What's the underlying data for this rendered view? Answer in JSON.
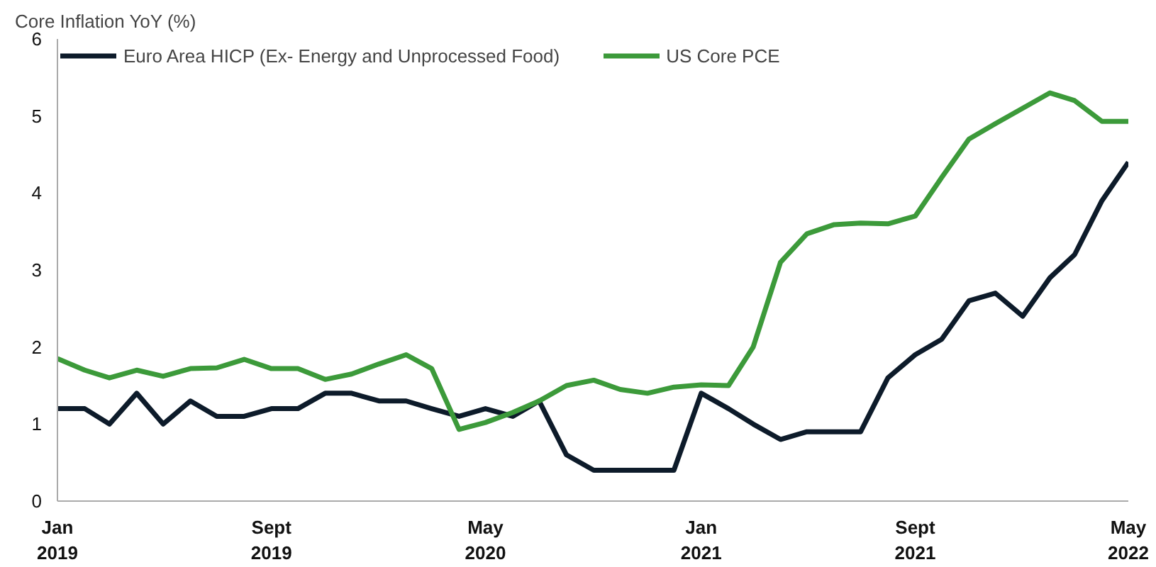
{
  "chart_data": {
    "type": "line",
    "ylabel": "Core Inflation YoY (%)",
    "x": [
      "2019-01",
      "2019-02",
      "2019-03",
      "2019-04",
      "2019-05",
      "2019-06",
      "2019-07",
      "2019-08",
      "2019-09",
      "2019-10",
      "2019-11",
      "2019-12",
      "2020-01",
      "2020-02",
      "2020-03",
      "2020-04",
      "2020-05",
      "2020-06",
      "2020-07",
      "2020-08",
      "2020-09",
      "2020-10",
      "2020-11",
      "2020-12",
      "2021-01",
      "2021-02",
      "2021-03",
      "2021-04",
      "2021-05",
      "2021-06",
      "2021-07",
      "2021-08",
      "2021-09",
      "2021-10",
      "2021-11",
      "2021-12",
      "2022-01",
      "2022-02",
      "2022-03",
      "2022-04",
      "2022-05"
    ],
    "series": [
      {
        "name": "Euro Area HICP (Ex- Energy and Unprocessed Food)",
        "color": "#0d1b2a",
        "values": [
          1.2,
          1.2,
          1.0,
          1.4,
          1.0,
          1.3,
          1.1,
          1.1,
          1.2,
          1.2,
          1.4,
          1.4,
          1.3,
          1.3,
          1.2,
          1.1,
          1.2,
          1.1,
          1.3,
          0.6,
          0.4,
          0.4,
          0.4,
          0.4,
          1.4,
          1.2,
          1.0,
          0.8,
          0.9,
          0.9,
          0.9,
          1.6,
          1.9,
          2.1,
          2.6,
          2.7,
          2.4,
          2.9,
          3.2,
          3.9,
          4.4
        ]
      },
      {
        "name": "US Core PCE",
        "color": "#3c9a3a",
        "values": [
          1.85,
          1.7,
          1.6,
          1.7,
          1.62,
          1.72,
          1.73,
          1.84,
          1.72,
          1.72,
          1.58,
          1.65,
          1.78,
          1.9,
          1.72,
          0.93,
          1.02,
          1.15,
          1.3,
          1.5,
          1.57,
          1.45,
          1.4,
          1.48,
          1.51,
          1.5,
          2.0,
          3.1,
          3.47,
          3.59,
          3.61,
          3.6,
          3.7,
          4.2,
          4.7,
          4.9,
          5.1,
          5.3,
          5.2,
          4.93,
          4.93
        ]
      }
    ],
    "xlim": [
      "2019-01",
      "2022-05"
    ],
    "xticks": [
      {
        "value": "2019-01",
        "label": "Jan\n2019"
      },
      {
        "value": "2019-09",
        "label": "Sept\n2019"
      },
      {
        "value": "2020-05",
        "label": "May\n2020"
      },
      {
        "value": "2021-01",
        "label": "Jan\n2021"
      },
      {
        "value": "2021-09",
        "label": "Sept\n2021"
      },
      {
        "value": "2022-05",
        "label": "May\n2022"
      }
    ],
    "ylim": [
      0,
      6
    ],
    "yticks": [
      0,
      1,
      2,
      3,
      4,
      5,
      6
    ],
    "grid": false,
    "legend": "top left",
    "marker": "none",
    "line_style": "solid"
  }
}
